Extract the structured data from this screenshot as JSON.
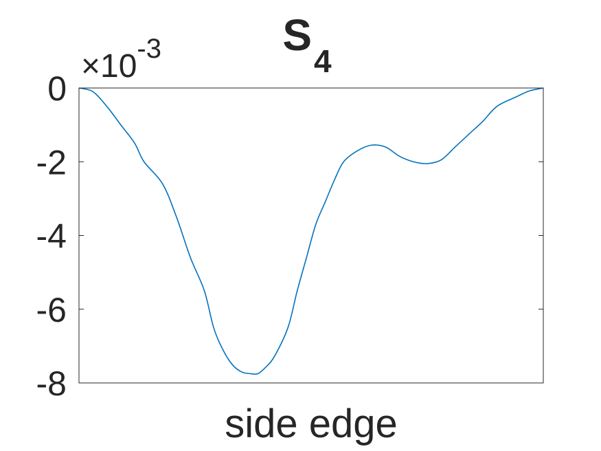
{
  "chart_data": {
    "type": "line",
    "title": "S",
    "title_subscript": "4",
    "xlabel": "side edge",
    "ylabel": "",
    "y_exponent_label": "×10",
    "y_exponent_power": "-3",
    "ylim": [
      -8,
      0
    ],
    "yticks": [
      0,
      -2,
      -4,
      -6,
      -8
    ],
    "ytick_labels": [
      "0",
      "-2",
      "-4",
      "-6",
      "-8"
    ],
    "xlim": [
      0,
      1
    ],
    "xticks": [],
    "grid": false,
    "line_color": "#0072BD",
    "series": [
      {
        "x": [
          0,
          0.03,
          0.06,
          0.09,
          0.12,
          0.14,
          0.18,
          0.21,
          0.24,
          0.27,
          0.29,
          0.31,
          0.33,
          0.35,
          0.37,
          0.385,
          0.4,
          0.42,
          0.45,
          0.47,
          0.49,
          0.51,
          0.53,
          0.55,
          0.57,
          0.6,
          0.63,
          0.66,
          0.69,
          0.72,
          0.75,
          0.78,
          0.81,
          0.84,
          0.87,
          0.9,
          0.94,
          0.97,
          1.0
        ],
        "y": [
          0,
          -0.1,
          -0.5,
          -1.0,
          -1.5,
          -2.0,
          -2.6,
          -3.5,
          -4.6,
          -5.5,
          -6.5,
          -7.1,
          -7.5,
          -7.7,
          -7.75,
          -7.75,
          -7.6,
          -7.3,
          -6.5,
          -5.5,
          -4.6,
          -3.7,
          -3.1,
          -2.5,
          -2.0,
          -1.7,
          -1.55,
          -1.6,
          -1.85,
          -2.0,
          -2.05,
          -1.95,
          -1.6,
          -1.25,
          -0.9,
          -0.5,
          -0.25,
          -0.08,
          0
        ]
      }
    ]
  }
}
